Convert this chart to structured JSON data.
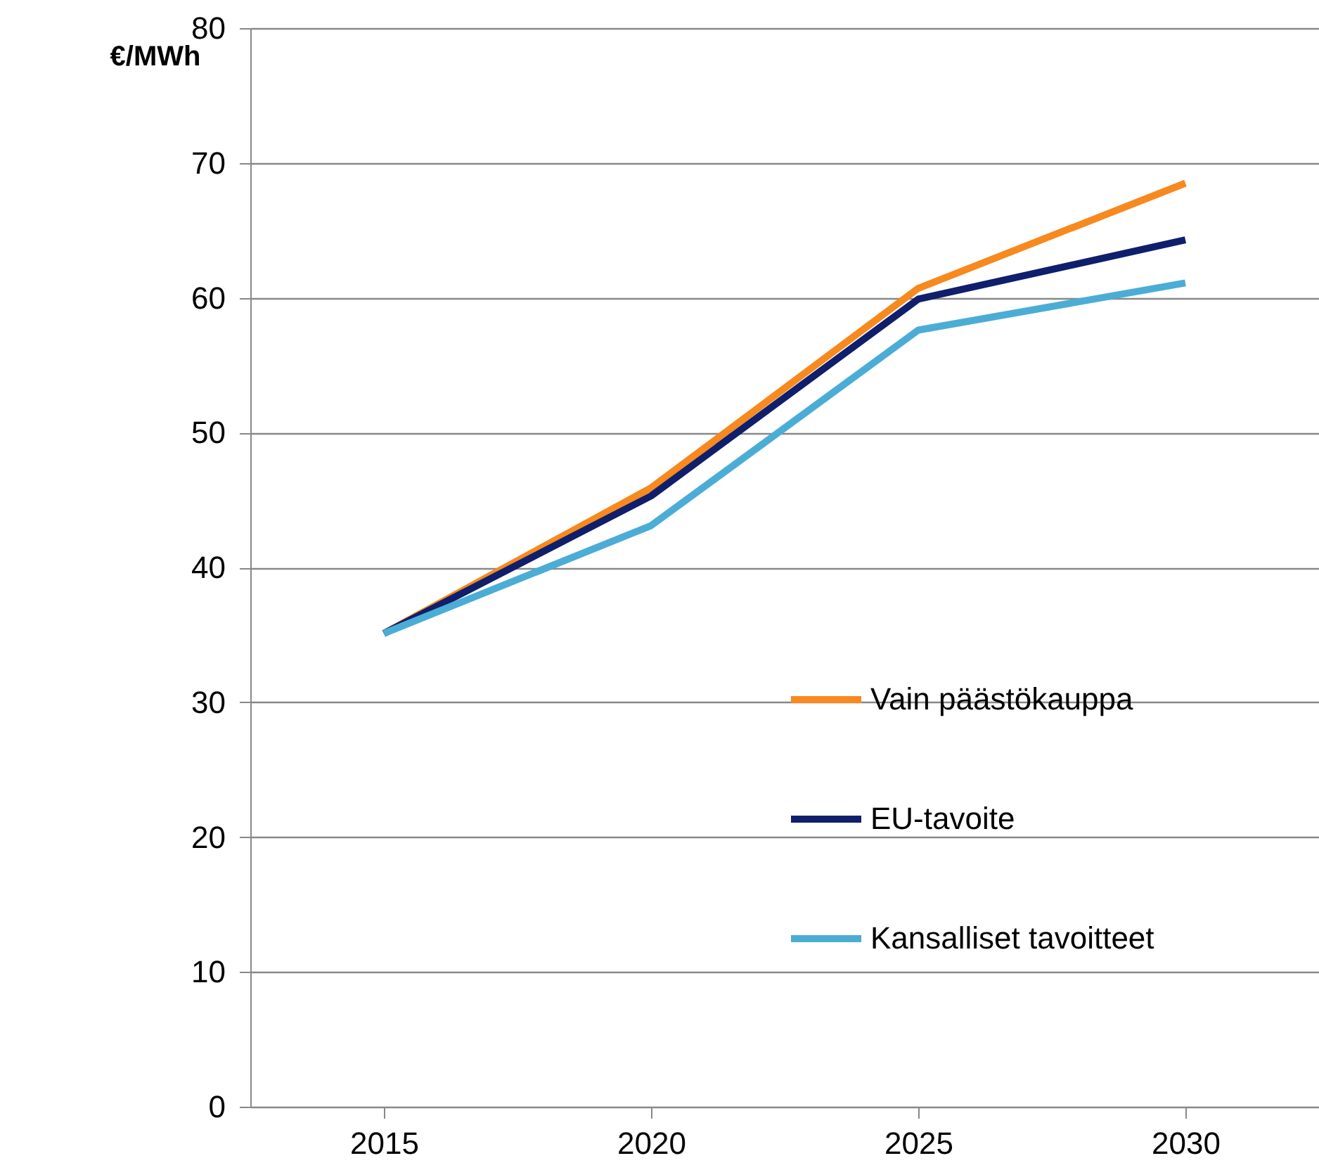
{
  "chart_data": {
    "type": "line",
    "ylabel": "€/MWh",
    "categories": [
      "2015",
      "2020",
      "2025",
      "2030"
    ],
    "series": [
      {
        "name": "Vain päästökauppa",
        "color": "#f7891e",
        "values": [
          35.1,
          45.9,
          60.7,
          68.5
        ]
      },
      {
        "name": "EU-tavoite",
        "color": "#0f1f6b",
        "values": [
          35.1,
          45.3,
          59.9,
          64.3
        ]
      },
      {
        "name": "Kansalliset tavoitteet",
        "color": "#4badd6",
        "values": [
          35.1,
          43.1,
          57.6,
          61.1
        ]
      }
    ],
    "ylim": [
      0,
      80
    ],
    "yticks": [
      0,
      10,
      20,
      30,
      40,
      50,
      60,
      70,
      80
    ],
    "grid": "y",
    "legend": "right",
    "marker": "none",
    "line_style": "solid"
  }
}
